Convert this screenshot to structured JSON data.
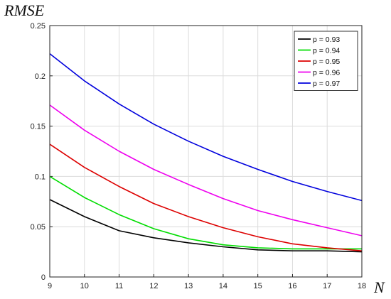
{
  "chart_data": {
    "type": "line",
    "title": "",
    "xlabel": "N",
    "ylabel": "RMSE",
    "x": [
      9,
      10,
      11,
      12,
      13,
      14,
      15,
      16,
      17,
      18
    ],
    "xlim": [
      9,
      18
    ],
    "ylim": [
      0,
      0.25
    ],
    "x_ticks": [
      "9",
      "10",
      "11",
      "12",
      "13",
      "14",
      "15",
      "16",
      "17",
      "18"
    ],
    "y_ticks": [
      "0",
      "0.05",
      "0.1",
      "0.15",
      "0.2",
      "0.25"
    ],
    "grid": true,
    "legend_position": "top-right",
    "series": [
      {
        "name": "p = 0.93",
        "color": "#000000",
        "values": [
          0.077,
          0.06,
          0.046,
          0.039,
          0.034,
          0.03,
          0.027,
          0.026,
          0.026,
          0.025
        ]
      },
      {
        "name": "p = 0.94",
        "color": "#00dd00",
        "values": [
          0.1,
          0.079,
          0.062,
          0.048,
          0.038,
          0.032,
          0.029,
          0.028,
          0.028,
          0.028
        ]
      },
      {
        "name": "p = 0.95",
        "color": "#dd0000",
        "values": [
          0.132,
          0.109,
          0.09,
          0.073,
          0.06,
          0.049,
          0.04,
          0.033,
          0.029,
          0.026
        ]
      },
      {
        "name": "p = 0.96",
        "color": "#ee00ee",
        "values": [
          0.171,
          0.146,
          0.125,
          0.107,
          0.092,
          0.078,
          0.066,
          0.057,
          0.049,
          0.041
        ]
      },
      {
        "name": "p = 0.97",
        "color": "#0000dd",
        "values": [
          0.222,
          0.195,
          0.172,
          0.152,
          0.135,
          0.12,
          0.107,
          0.095,
          0.085,
          0.076
        ]
      }
    ]
  }
}
